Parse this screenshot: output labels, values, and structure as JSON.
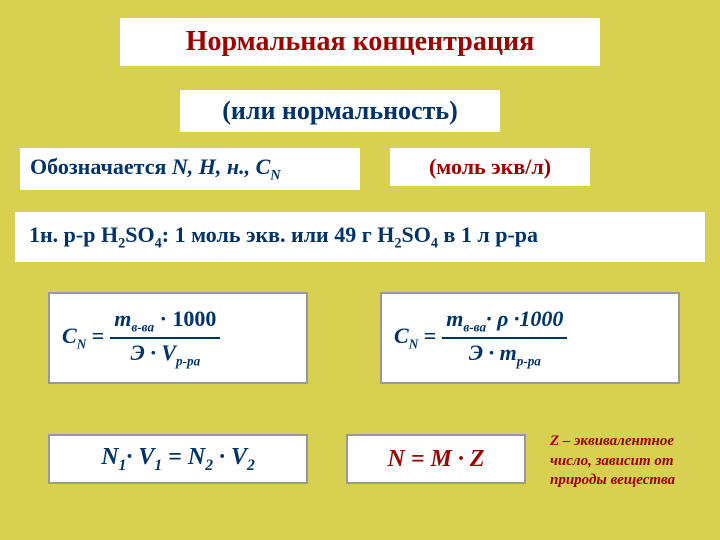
{
  "colors": {
    "background": "#d8d050",
    "box_background": "#ffffff",
    "box_border": "#999999",
    "title_color": "#a00000",
    "text_color": "#003366",
    "accent_color": "#a00000"
  },
  "title": "Нормальная концентрация",
  "subtitle": "(или нормальность)",
  "notation": {
    "label": "Обозначается",
    "symbols": "N,  Н,  н.,  C",
    "sub_n": "N"
  },
  "unit": "(моль экв/л)",
  "example": {
    "prefix": "1н. р-р H",
    "sub2a": "2",
    "so4a": "SO",
    "sub4a": "4",
    "middle": ": 1 моль экв. или 49 г H",
    "sub2b": "2",
    "so4b": "SO",
    "sub4b": "4",
    "suffix": " в 1 л р-ра"
  },
  "formula1": {
    "lhs": "C",
    "lhs_sub": "N",
    "equals": " = ",
    "num_m": "m",
    "num_sub": "в-ва",
    "num_mult": " · 1000",
    "den_e": "Э · V",
    "den_sub": "р-ра"
  },
  "formula2": {
    "lhs": "C",
    "lhs_sub": "N",
    "equals": " = ",
    "num_m": "m",
    "num_sub": "в-ва",
    "num_rho": "· ρ ·1000",
    "den_e": "Э · m",
    "den_sub": "р-ра"
  },
  "formula3": {
    "n1": "N",
    "s1": "1",
    "dot1": "· ",
    "v1": "V",
    "s1b": "1",
    "eq": "  =  ",
    "n2": "N",
    "s2": "2",
    "dot2": " · ",
    "v2": "V",
    "s2b": "2"
  },
  "formula4": "N = M · Z",
  "z_note": {
    "z": "Z",
    "text": " – эквивалентное число, зависит от природы вещества"
  }
}
